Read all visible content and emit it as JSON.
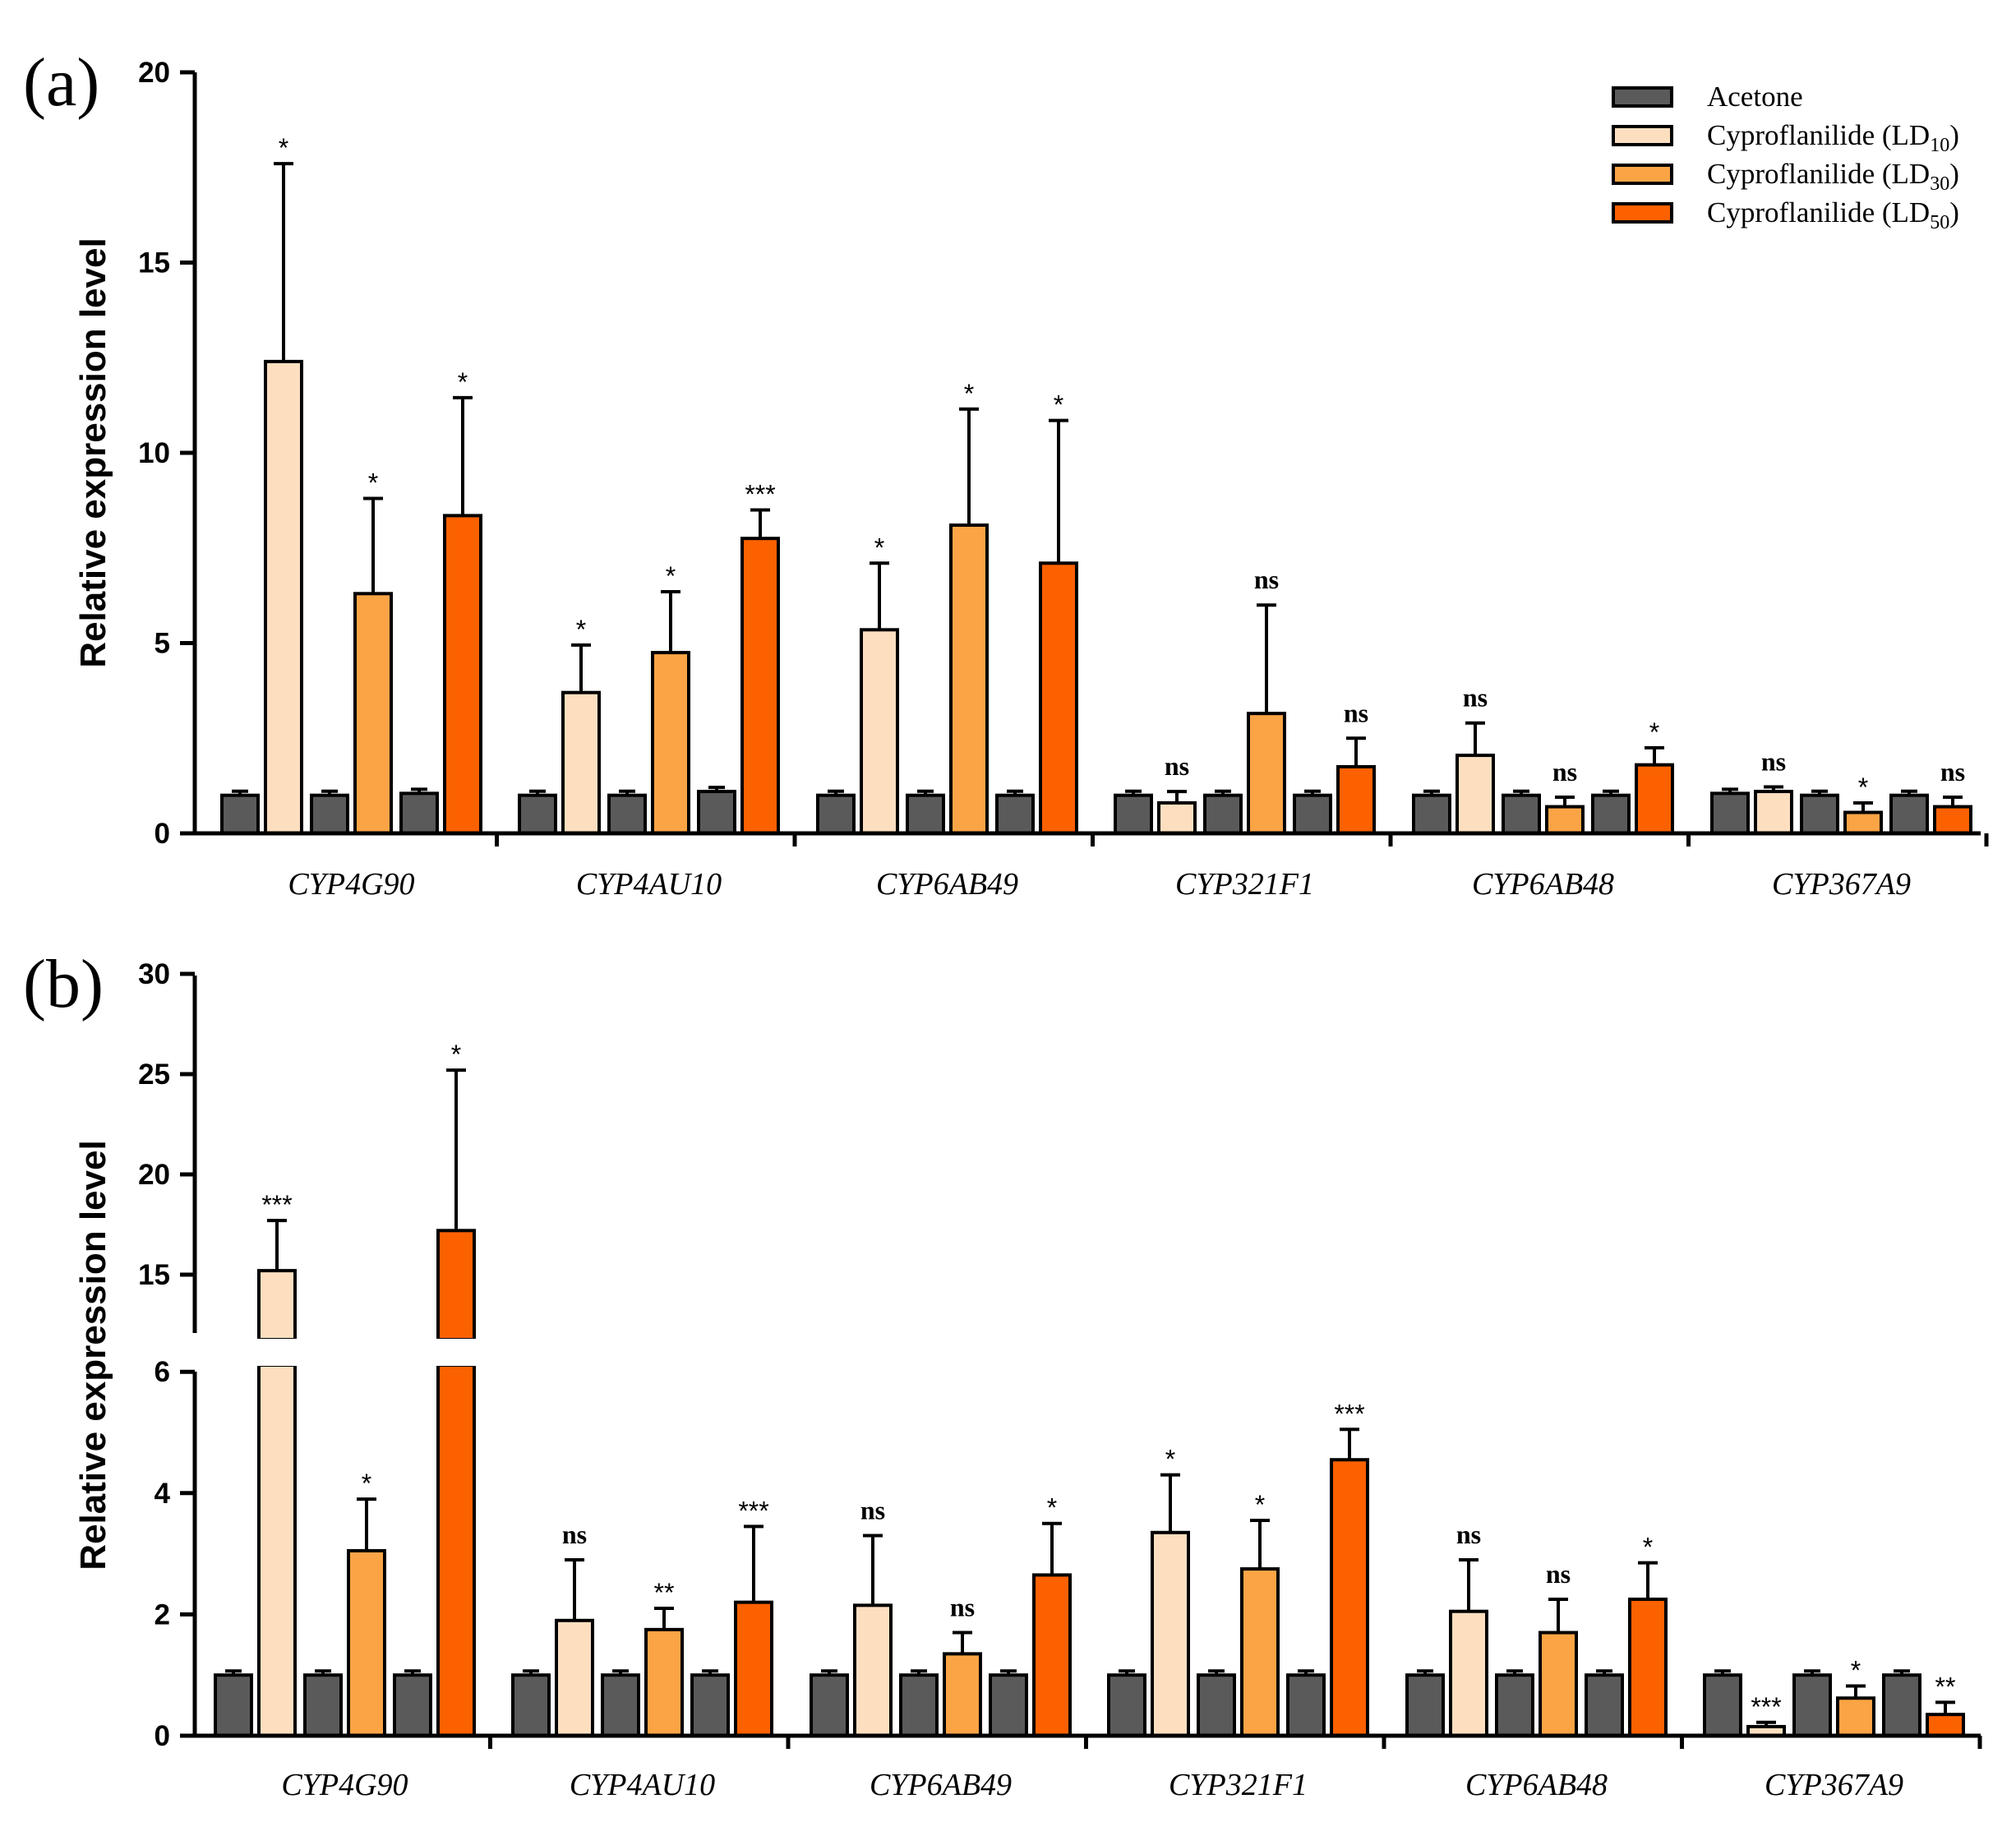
{
  "colors": {
    "acetone": "#5a5a5a",
    "ld10": "#fddfc0",
    "ld30": "#fba446",
    "ld50": "#fc6100"
  },
  "legend": {
    "acetone": {
      "label": "Acetone"
    },
    "ld10": {
      "label": "Cyproflanilide (LD",
      "sub": "10",
      "close": ")"
    },
    "ld30": {
      "label": "Cyproflanilide (LD",
      "sub": "30",
      "close": ")"
    },
    "ld50": {
      "label": "Cyproflanilide (LD",
      "sub": "50",
      "close": ")"
    }
  },
  "chart_data": [
    {
      "panel": "(a)",
      "type": "bar",
      "ylabel": "Relative expression level",
      "ylim": [
        0,
        20
      ],
      "yticks": [
        "0",
        "5",
        "10",
        "15",
        "20"
      ],
      "categories": [
        "CYP4G90",
        "CYP4AU10",
        "CYP6AB49",
        "CYP321F1",
        "CYP6AB48",
        "CYP367A9"
      ],
      "comparisons": [
        "LD10 vs Acetone",
        "LD30 vs Acetone",
        "LD50 vs Acetone"
      ],
      "groups": [
        {
          "pairs": [
            {
              "control": 1.0,
              "treated": 12.4,
              "error": 5.2,
              "sig": "*"
            },
            {
              "control": 1.0,
              "treated": 6.3,
              "error": 2.5,
              "sig": "*"
            },
            {
              "control": 1.05,
              "treated": 8.35,
              "error": 3.1,
              "sig": "*"
            }
          ]
        },
        {
          "pairs": [
            {
              "control": 1.0,
              "treated": 3.7,
              "error": 1.25,
              "sig": "*"
            },
            {
              "control": 1.0,
              "treated": 4.75,
              "error": 1.6,
              "sig": "*"
            },
            {
              "control": 1.1,
              "treated": 7.75,
              "error": 0.75,
              "sig": "***"
            }
          ]
        },
        {
          "pairs": [
            {
              "control": 1.0,
              "treated": 5.35,
              "error": 1.75,
              "sig": "*"
            },
            {
              "control": 1.0,
              "treated": 8.1,
              "error": 3.05,
              "sig": "*"
            },
            {
              "control": 1.0,
              "treated": 7.1,
              "error": 3.75,
              "sig": "*"
            }
          ]
        },
        {
          "pairs": [
            {
              "control": 1.0,
              "treated": 0.8,
              "error": 0.3,
              "sig": "ns"
            },
            {
              "control": 1.0,
              "treated": 3.15,
              "error": 2.85,
              "sig": "ns"
            },
            {
              "control": 1.0,
              "treated": 1.75,
              "error": 0.75,
              "sig": "ns"
            }
          ]
        },
        {
          "pairs": [
            {
              "control": 1.0,
              "treated": 2.05,
              "error": 0.85,
              "sig": "ns"
            },
            {
              "control": 1.0,
              "treated": 0.7,
              "error": 0.25,
              "sig": "ns"
            },
            {
              "control": 1.0,
              "treated": 1.8,
              "error": 0.45,
              "sig": "*"
            }
          ]
        },
        {
          "pairs": [
            {
              "control": 1.05,
              "treated": 1.1,
              "error": 0.12,
              "sig": "ns"
            },
            {
              "control": 1.0,
              "treated": 0.55,
              "error": 0.25,
              "sig": "*"
            },
            {
              "control": 1.0,
              "treated": 0.7,
              "error": 0.25,
              "sig": "ns"
            }
          ]
        }
      ]
    },
    {
      "panel": "(b)",
      "type": "bar",
      "ylabel": "Relative expression level",
      "ylim": [
        0,
        30
      ],
      "axis_break": [
        6,
        12
      ],
      "yticks": [
        "0",
        "2",
        "4",
        "6",
        "15",
        "20",
        "25",
        "30"
      ],
      "categories": [
        "CYP4G90",
        "CYP4AU10",
        "CYP6AB49",
        "CYP321F1",
        "CYP6AB48",
        "CYP367A9"
      ],
      "comparisons": [
        "LD10 vs Acetone",
        "LD30 vs Acetone",
        "LD50 vs Acetone"
      ],
      "groups": [
        {
          "pairs": [
            {
              "control": 1.0,
              "treated": 15.2,
              "error": 2.5,
              "sig": "***"
            },
            {
              "control": 1.0,
              "treated": 3.05,
              "error": 0.85,
              "sig": "*"
            },
            {
              "control": 1.0,
              "treated": 17.2,
              "error": 8.0,
              "sig": "*"
            }
          ]
        },
        {
          "pairs": [
            {
              "control": 1.0,
              "treated": 1.9,
              "error": 1.0,
              "sig": "ns"
            },
            {
              "control": 1.0,
              "treated": 1.75,
              "error": 0.35,
              "sig": "**"
            },
            {
              "control": 1.0,
              "treated": 2.2,
              "error": 1.25,
              "sig": "***"
            }
          ]
        },
        {
          "pairs": [
            {
              "control": 1.0,
              "treated": 2.15,
              "error": 1.15,
              "sig": "ns"
            },
            {
              "control": 1.0,
              "treated": 1.35,
              "error": 0.35,
              "sig": "ns"
            },
            {
              "control": 1.0,
              "treated": 2.65,
              "error": 0.85,
              "sig": "*"
            }
          ]
        },
        {
          "pairs": [
            {
              "control": 1.0,
              "treated": 3.35,
              "error": 0.95,
              "sig": "*"
            },
            {
              "control": 1.0,
              "treated": 2.75,
              "error": 0.8,
              "sig": "*"
            },
            {
              "control": 1.0,
              "treated": 4.55,
              "error": 0.5,
              "sig": "***"
            }
          ]
        },
        {
          "pairs": [
            {
              "control": 1.0,
              "treated": 2.05,
              "error": 0.85,
              "sig": "ns"
            },
            {
              "control": 1.0,
              "treated": 1.7,
              "error": 0.55,
              "sig": "ns"
            },
            {
              "control": 1.0,
              "treated": 2.25,
              "error": 0.6,
              "sig": "*"
            }
          ]
        },
        {
          "pairs": [
            {
              "control": 1.0,
              "treated": 0.15,
              "error": 0.07,
              "sig": "***"
            },
            {
              "control": 1.0,
              "treated": 0.62,
              "error": 0.2,
              "sig": "*"
            },
            {
              "control": 1.0,
              "treated": 0.35,
              "error": 0.2,
              "sig": "**"
            }
          ]
        }
      ]
    }
  ]
}
